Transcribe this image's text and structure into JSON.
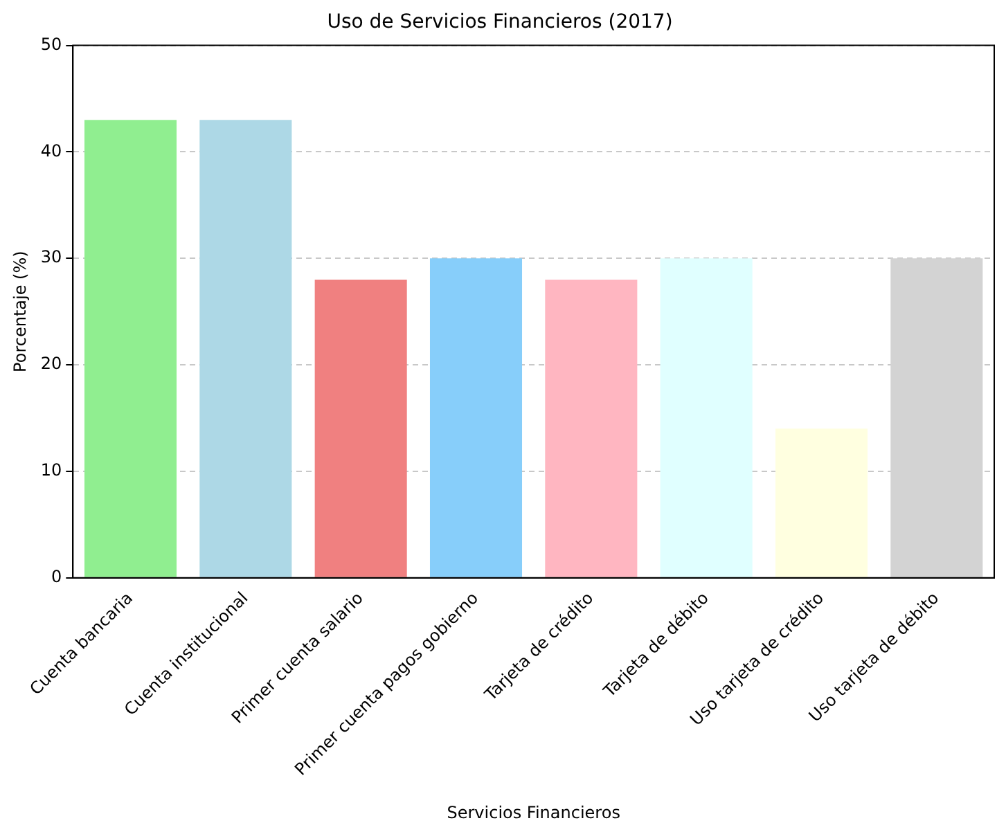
{
  "chart_data": {
    "type": "bar",
    "title": "Uso de Servicios Financieros (2017)",
    "xlabel": "Servicios Financieros",
    "ylabel": "Porcentaje (%)",
    "categories": [
      "Cuenta bancaria",
      "Cuenta institucional",
      "Primer cuenta salario",
      "Primer cuenta pagos gobierno",
      "Tarjeta de crédito",
      "Tarjeta de débito",
      "Uso tarjeta de crédito",
      "Uso tarjeta de débito"
    ],
    "values": [
      43,
      43,
      28,
      30,
      28,
      30,
      14,
      30
    ],
    "colors": [
      "#90ee90",
      "#add8e6",
      "#f08080",
      "#87cefa",
      "#ffb6c1",
      "#e0ffff",
      "#ffffe0",
      "#d3d3d3"
    ],
    "ylim": [
      0,
      50
    ],
    "yticks": [
      0,
      10,
      20,
      30,
      40,
      50
    ],
    "grid": "y",
    "legend": false
  }
}
